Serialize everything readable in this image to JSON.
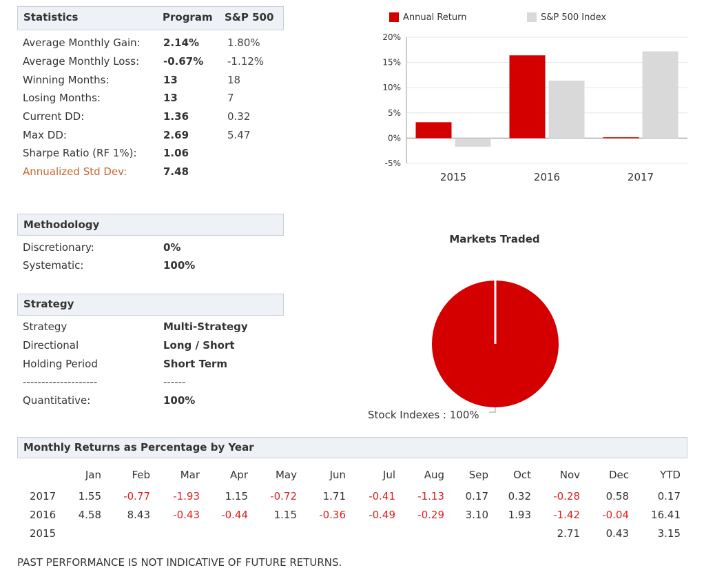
{
  "statistics": {
    "title": "Statistics",
    "col_program": "Program",
    "col_sp500": "S&P 500",
    "rows": [
      {
        "label": "Average Monthly Gain:",
        "program": "2.14%",
        "sp500": "1.80%"
      },
      {
        "label": "Average Monthly Loss:",
        "program": "-0.67%",
        "sp500": "-1.12%"
      },
      {
        "label": "Winning Months:",
        "program": "13",
        "sp500": "18"
      },
      {
        "label": "Losing Months:",
        "program": "13",
        "sp500": "7"
      },
      {
        "label": "Current DD:",
        "program": "1.36",
        "sp500": "0.32"
      },
      {
        "label": "Max DD:",
        "program": "2.69",
        "sp500": "5.47"
      },
      {
        "label": "Sharpe Ratio (RF 1%):",
        "program": "1.06",
        "sp500": ""
      },
      {
        "label": "Annualized Std Dev:",
        "program": "7.48",
        "sp500": ""
      }
    ]
  },
  "methodology": {
    "title": "Methodology",
    "rows": [
      {
        "label": "Discretionary:",
        "value": "0%"
      },
      {
        "label": "Systematic:",
        "value": "100%"
      }
    ]
  },
  "strategy": {
    "title": "Strategy",
    "rows": [
      {
        "label": "Strategy",
        "value": "Multi-Strategy"
      },
      {
        "label": "Directional",
        "value": "Long / Short"
      },
      {
        "label": "Holding Period",
        "value": "Short Term"
      },
      {
        "label": "--------------------",
        "value": "------"
      },
      {
        "label": "Quantitative:",
        "value": "100%"
      }
    ]
  },
  "chart_data": [
    {
      "type": "bar",
      "title": "",
      "categories": [
        "2015",
        "2016",
        "2017"
      ],
      "series": [
        {
          "name": "Annual Return",
          "values": [
            3.15,
            16.41,
            0.17
          ],
          "color": "#d40000"
        },
        {
          "name": "S&P 500 Index",
          "values": [
            -1.7,
            11.4,
            17.2
          ],
          "color": "#d9d9d9"
        }
      ],
      "ylim": [
        -5,
        20
      ],
      "yticks": [
        "20%",
        "15%",
        "10%",
        "5%",
        "0%",
        "-5%"
      ],
      "ytick_values": [
        20,
        15,
        10,
        5,
        0,
        -5
      ],
      "grid": true,
      "legend": "top"
    },
    {
      "type": "pie",
      "title": "Markets Traded",
      "slices": [
        {
          "label": "Stock Indexes : 100%",
          "value": 100,
          "color": "#d40000"
        }
      ]
    }
  ],
  "monthly": {
    "title": "Monthly Returns as Percentage by Year",
    "headers": [
      "Jan",
      "Feb",
      "Mar",
      "Apr",
      "May",
      "Jun",
      "Jul",
      "Aug",
      "Sep",
      "Oct",
      "Nov",
      "Dec",
      "YTD"
    ],
    "rows": [
      {
        "year": "2017",
        "values": [
          "1.55",
          "-0.77",
          "-1.93",
          "1.15",
          "-0.72",
          "1.71",
          "-0.41",
          "-1.13",
          "0.17",
          "0.32",
          "-0.28",
          "0.58",
          "0.17"
        ]
      },
      {
        "year": "2016",
        "values": [
          "4.58",
          "8.43",
          "-0.43",
          "-0.44",
          "1.15",
          "-0.36",
          "-0.49",
          "-0.29",
          "3.10",
          "1.93",
          "-1.42",
          "-0.04",
          "16.41"
        ]
      },
      {
        "year": "2015",
        "values": [
          "",
          "",
          "",
          "",
          "",
          "",
          "",
          "",
          "",
          "",
          "2.71",
          "0.43",
          "3.15"
        ]
      }
    ]
  },
  "disclaimer": "PAST PERFORMANCE IS NOT INDICATIVE OF FUTURE RETURNS.",
  "colors": {
    "accent": "#d40000",
    "index": "#d9d9d9",
    "highlight": "#c9652f",
    "negative": "#e02020"
  }
}
